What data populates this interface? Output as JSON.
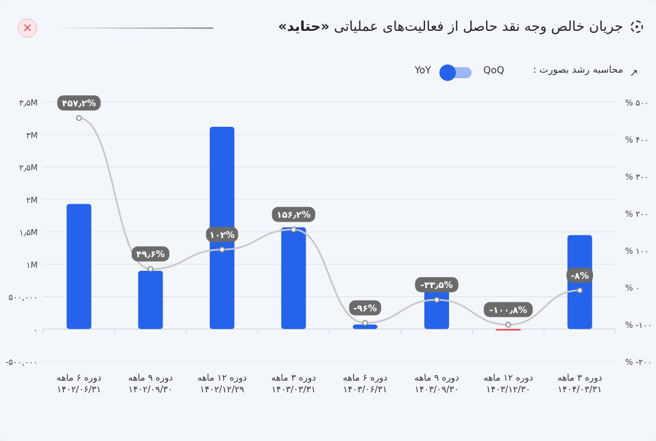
{
  "header": {
    "title_prefix": "جریان خالص وجه نقد حاصل از فعالیت‌های عملیاتی ",
    "title_symbol": "«حتاید»",
    "close_label": "×"
  },
  "toggle": {
    "label": "محاسبه رشد بصورت :",
    "option_left": "QoQ",
    "option_right": "YoY",
    "selected": "YoY",
    "trend_icon": "↗"
  },
  "colors": {
    "bar": "#2563eb",
    "negative_bar": "#e53935",
    "line": "#c8c8c8",
    "label_bg": "#6b6b6b"
  },
  "chart_data": {
    "type": "bar",
    "categories": [
      [
        "دوره ۶ ماهه",
        "۱۴۰۲/۰۶/۳۱"
      ],
      [
        "دوره ۹ ماهه",
        "۱۴۰۲/۰۹/۳۰"
      ],
      [
        "دوره ۱۲ ماهه",
        "۱۴۰۲/۱۲/۲۹"
      ],
      [
        "دوره ۳ ماهه",
        "۱۴۰۳/۰۳/۳۱"
      ],
      [
        "دوره ۶ ماهه",
        "۱۴۰۳/۰۶/۳۱"
      ],
      [
        "دوره ۹ ماهه",
        "۱۴۰۳/۰۹/۳۰"
      ],
      [
        "دوره ۱۲ ماهه",
        "۱۴۰۳/۱۲/۳۰"
      ],
      [
        "دوره ۳ ماهه",
        "۱۴۰۴/۰۳/۳۱"
      ]
    ],
    "values": [
      1930000,
      900000,
      3120000,
      1570000,
      70000,
      600000,
      -15000,
      1450000
    ],
    "growth": [
      457.2,
      49.6,
      102,
      156.2,
      -96,
      -33.5,
      -100.8,
      -8
    ],
    "growth_labels": [
      "۴۵۷٫۲%",
      "۴۹٫۶%",
      "۱۰۲%",
      "۱۵۶٫۲%",
      "-۹۶%",
      "-۳۳٫۵%",
      "-۱۰۰٫۸%",
      "-۸%"
    ],
    "ylim": [
      -500000,
      3500000
    ],
    "y2lim": [
      -200,
      500
    ],
    "y_ticks": [
      {
        "v": 3500000,
        "label": "۳٫۵M"
      },
      {
        "v": 3000000,
        "label": "۳M"
      },
      {
        "v": 2500000,
        "label": "۲٫۵M"
      },
      {
        "v": 2000000,
        "label": "۲M"
      },
      {
        "v": 1500000,
        "label": "۱٫۵M"
      },
      {
        "v": 1000000,
        "label": "۱M"
      },
      {
        "v": 500000,
        "label": "۵۰۰,۰۰۰"
      },
      {
        "v": 0,
        "label": "۰"
      },
      {
        "v": -500000,
        "label": "-۵۰۰,۰۰۰"
      }
    ],
    "y2_ticks": [
      {
        "v": 500,
        "label": "% ۵۰۰"
      },
      {
        "v": 400,
        "label": "% ۴۰۰"
      },
      {
        "v": 300,
        "label": "% ۳۰۰"
      },
      {
        "v": 200,
        "label": "% ۲۰۰"
      },
      {
        "v": 100,
        "label": "% ۱۰۰"
      },
      {
        "v": 0,
        "label": "% ۰"
      },
      {
        "v": -100,
        "label": "% -۱۰۰"
      },
      {
        "v": -200,
        "label": "% -۲۰۰"
      }
    ],
    "grid": true
  }
}
